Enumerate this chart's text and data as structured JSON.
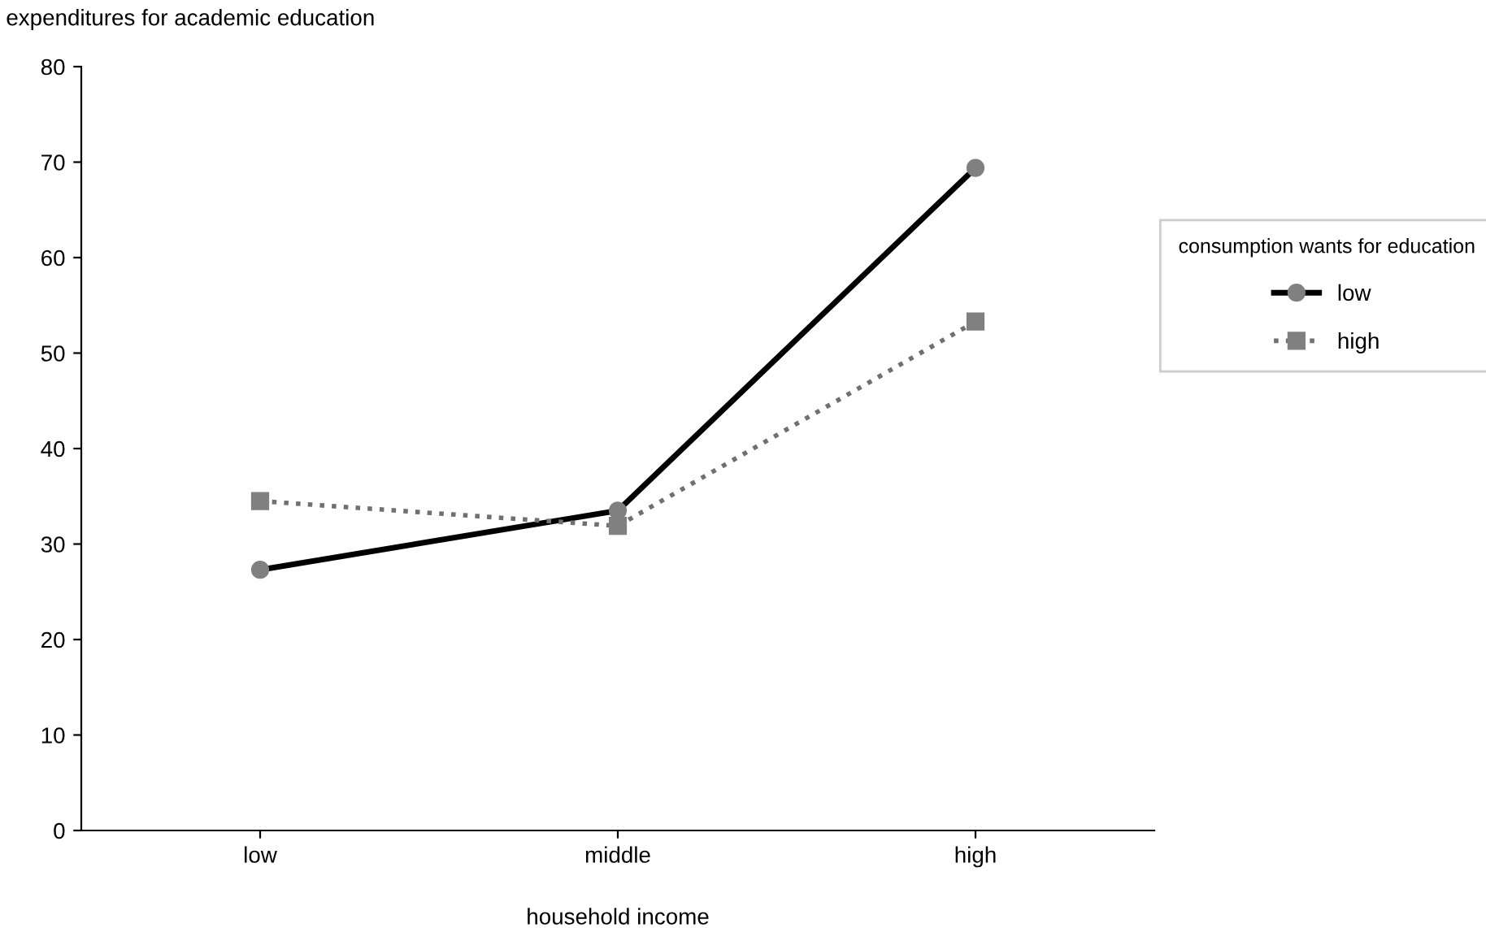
{
  "chart_data": {
    "type": "line",
    "ylabel": "expenditures for academic education",
    "xlabel": "household income",
    "legend_title": "consumption wants for education",
    "categories": [
      "low",
      "middle",
      "high"
    ],
    "series": [
      {
        "name": "low",
        "color": "#000000",
        "marker": "circle",
        "line_style": "solid",
        "values": [
          27.3,
          33.5,
          69.4
        ]
      },
      {
        "name": "high",
        "color": "#707070",
        "marker": "square",
        "line_style": "dotted",
        "values": [
          34.5,
          31.9,
          53.3
        ]
      }
    ],
    "ylim": [
      0,
      80
    ],
    "yticks": [
      0,
      10,
      20,
      30,
      40,
      50,
      60,
      70,
      80
    ],
    "grid": false,
    "legend": "right"
  }
}
